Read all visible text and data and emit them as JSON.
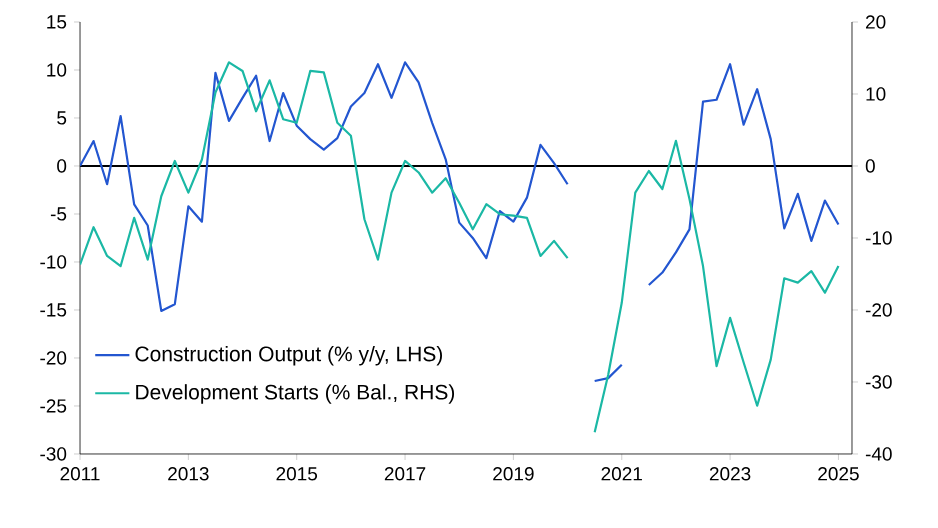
{
  "chart_data": {
    "type": "line",
    "x": [
      2011.0,
      2011.25,
      2011.5,
      2011.75,
      2012.0,
      2012.25,
      2012.5,
      2012.75,
      2013.0,
      2013.25,
      2013.5,
      2013.75,
      2014.0,
      2014.25,
      2014.5,
      2014.75,
      2015.0,
      2015.25,
      2015.5,
      2015.75,
      2016.0,
      2016.25,
      2016.5,
      2016.75,
      2017.0,
      2017.25,
      2017.5,
      2017.75,
      2018.0,
      2018.25,
      2018.5,
      2018.75,
      2019.0,
      2019.25,
      2019.5,
      2019.75,
      2020.0,
      2020.25,
      2020.5,
      2020.75,
      2021.0,
      2021.25,
      2021.5,
      2021.75,
      2022.0,
      2022.25,
      2022.5,
      2022.75,
      2023.0,
      2023.25,
      2023.5,
      2023.75,
      2024.0,
      2024.25,
      2024.5,
      2024.75,
      2025.0
    ],
    "series": [
      {
        "name": "Construction Output (% y/y, LHS)",
        "color": "#2356d0",
        "values": [
          0,
          2.6,
          -1.9,
          5.2,
          -4,
          -6.2,
          -15.1,
          -14.4,
          -4.2,
          -5.8,
          9.7,
          4.7,
          7.1,
          9.4,
          2.6,
          7.6,
          4.2,
          2.8,
          1.7,
          2.9,
          6.2,
          7.6,
          10.6,
          7.1,
          10.8,
          8.7,
          4.5,
          0.7,
          -5.9,
          -7.5,
          -9.6,
          -4.7,
          -5.8,
          -3.3,
          2.2,
          0.3,
          -1.9,
          null,
          -22.4,
          -22.1,
          -20.7,
          null,
          -12.4,
          -11.1,
          -9.0,
          -6.6,
          6.7,
          6.9,
          10.6,
          4.3,
          8.0,
          2.8,
          -6.5,
          -2.9,
          -7.8,
          -3.6,
          -6.1
        ]
      },
      {
        "name": "Development Starts (% Bal., RHS)",
        "color": "#1bb8a5",
        "axis": "y2",
        "values": [
          -13.7,
          -8.5,
          -12.5,
          -13.9,
          -7.2,
          -13.0,
          -4.2,
          0.7,
          -3.7,
          0.9,
          10.2,
          14.4,
          13.2,
          7.6,
          11.9,
          6.5,
          6.0,
          13.2,
          13.0,
          6.0,
          4.2,
          -7.4,
          -13.0,
          -3.7,
          0.7,
          -0.9,
          -3.7,
          -1.7,
          -5.1,
          -8.8,
          -5.3,
          -6.7,
          -6.9,
          -7.2,
          -12.5,
          -10.4,
          -12.8,
          null,
          -37,
          -29,
          -19,
          -3.7,
          -0.7,
          -3.2,
          3.5,
          -4.6,
          -13.9,
          -27.8,
          -21.1,
          -27.3,
          -33.3,
          -26.9,
          -15.6,
          -16.2,
          -14.6,
          -17.6,
          -13.9
        ]
      }
    ],
    "xlim": [
      2011,
      2025.25
    ],
    "xticks": [
      2011,
      2013,
      2015,
      2017,
      2019,
      2021,
      2023,
      2025
    ],
    "ylim": [
      -30,
      15
    ],
    "yticks": [
      -30,
      -25,
      -20,
      -15,
      -10,
      -5,
      0,
      5,
      10,
      15
    ],
    "y2lim": [
      -40,
      20
    ],
    "y2ticks": [
      -40,
      -30,
      -20,
      -10,
      0,
      10,
      20
    ],
    "ref_lines": [
      {
        "axis": "y",
        "value": 0,
        "color": "#000000"
      }
    ],
    "legend": "bottom left",
    "grid": false
  }
}
